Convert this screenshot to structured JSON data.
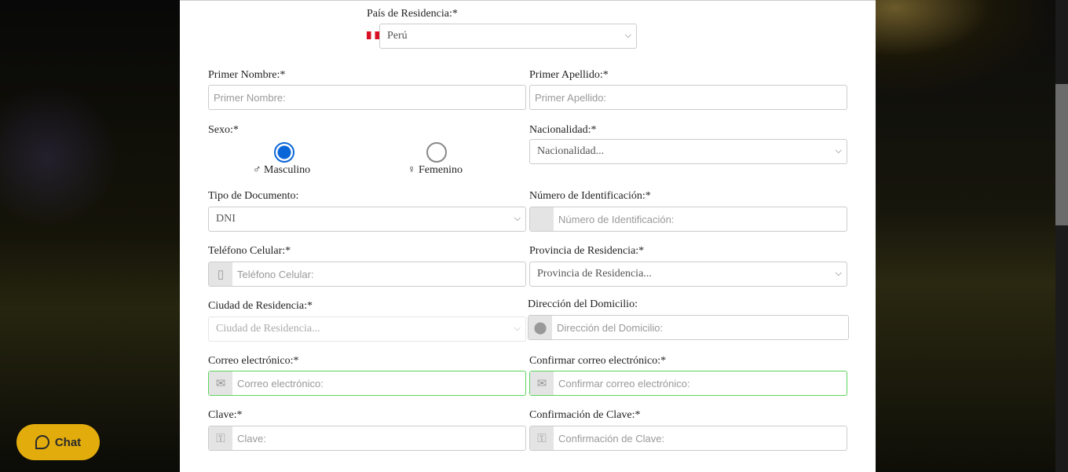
{
  "pais": {
    "label": "País de Residencia:*",
    "value": "Perú",
    "flag_colors": [
      "#d91023",
      "#ffffff"
    ]
  },
  "primer_nombre": {
    "label": "Primer Nombre:*",
    "placeholder": "Primer Nombre:"
  },
  "primer_apellido": {
    "label": "Primer Apellido:*",
    "placeholder": "Primer Apellido:"
  },
  "sexo": {
    "label": "Sexo:*",
    "options": [
      {
        "label": "Masculino",
        "symbol": "♂",
        "selected": true
      },
      {
        "label": "Femenino",
        "symbol": "♀",
        "selected": false
      }
    ]
  },
  "nacionalidad": {
    "label": "Nacionalidad:*",
    "value": "Nacionalidad..."
  },
  "tipo_documento": {
    "label": "Tipo de Documento:",
    "value": "DNI"
  },
  "numero_id": {
    "label": "Número de Identificación:*",
    "placeholder": "Número de Identificación:"
  },
  "telefono": {
    "label": "Teléfono Celular:*",
    "placeholder": "Teléfono Celular:",
    "icon": "mobile-icon"
  },
  "provincia": {
    "label": "Provincia de Residencia:*",
    "value": "Provincia de Residencia..."
  },
  "ciudad": {
    "label": "Ciudad de Residencia:*",
    "value": "Ciudad de Residencia..."
  },
  "direccion": {
    "label": "Dirección del Domicilio:",
    "placeholder": "Dirección del Domicilio:",
    "icon": "map-marker-icon"
  },
  "correo": {
    "label": "Correo electrónico:*",
    "placeholder": "Correo electrónico:",
    "icon": "envelope-icon"
  },
  "confirmar_correo": {
    "label": "Confirmar correo electrónico:*",
    "placeholder": "Confirmar correo electrónico:",
    "icon": "envelope-icon"
  },
  "clave": {
    "label": "Clave:*",
    "placeholder": "Clave:",
    "icon": "key-icon"
  },
  "confirmar_clave": {
    "label": "Confirmación de Clave:*",
    "placeholder": "Confirmación de Clave:",
    "icon": "key-icon"
  },
  "chat": {
    "label": "Chat",
    "color": "#e2ac0d"
  },
  "accent": "#0a66d8"
}
